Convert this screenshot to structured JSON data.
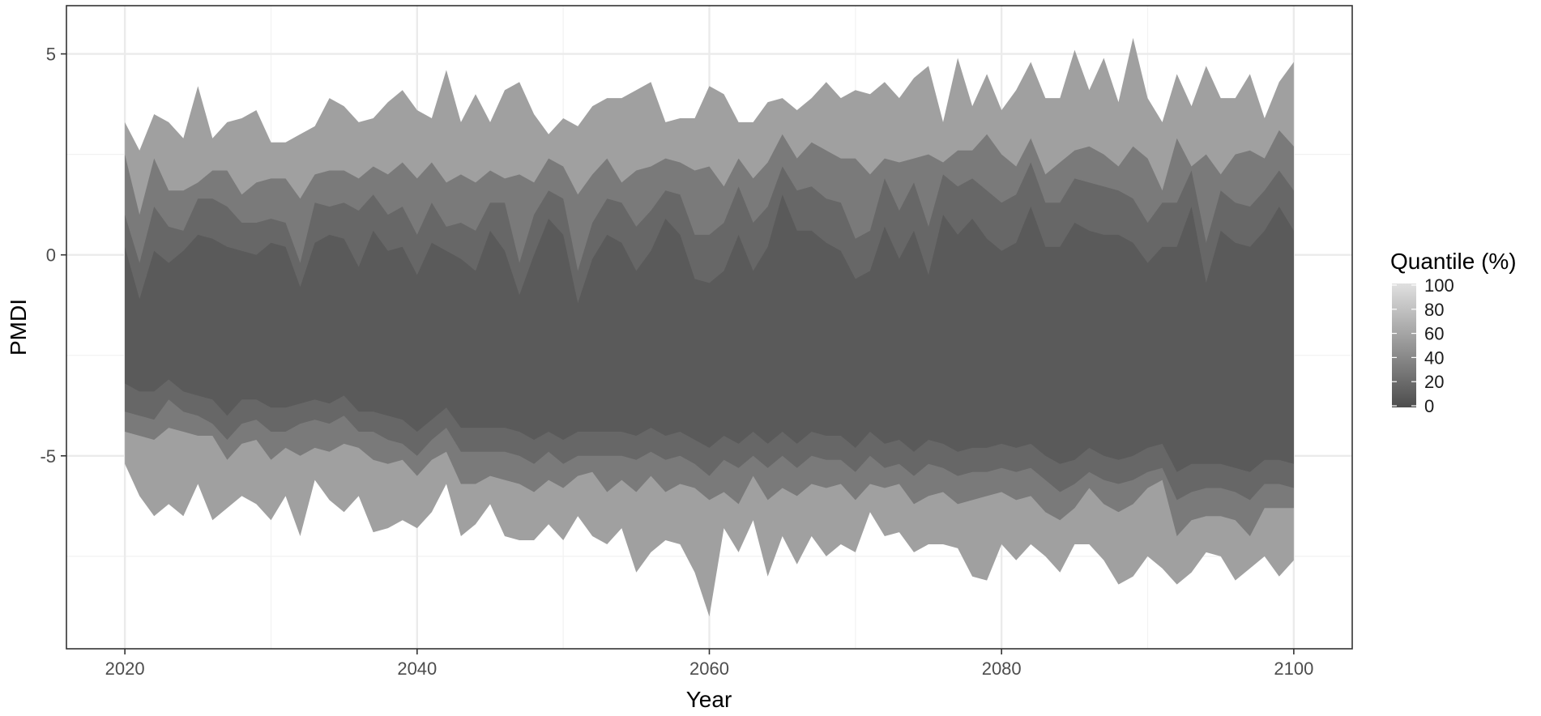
{
  "chart_data": {
    "type": "area",
    "xlabel": "Year",
    "ylabel": "PMDI",
    "xlim": [
      2016,
      2104
    ],
    "ylim": [
      -9.8,
      6.2
    ],
    "x_ticks": [
      2020,
      2040,
      2060,
      2080,
      2100
    ],
    "x_tick_labels": [
      "2020",
      "2040",
      "2060",
      "2080",
      "2100"
    ],
    "y_ticks": [
      5,
      0,
      -5
    ],
    "y_tick_labels": [
      "5",
      "0",
      "-5"
    ],
    "grid": true,
    "legend": {
      "title": "Quantile (%)",
      "placement": "right",
      "labels": [
        "100",
        "80",
        "60",
        "40",
        "20",
        "0"
      ],
      "values": [
        100,
        80,
        60,
        40,
        20,
        0
      ],
      "color_low": "#4d4d4d",
      "color_high": "#e0e0e0"
    },
    "band_colors": [
      "#a0a0a0",
      "#7a7a7a",
      "#676767",
      "#5a5a5a"
    ],
    "years": [
      2020,
      2021,
      2022,
      2023,
      2024,
      2025,
      2026,
      2027,
      2028,
      2029,
      2030,
      2031,
      2032,
      2033,
      2034,
      2035,
      2036,
      2037,
      2038,
      2039,
      2040,
      2041,
      2042,
      2043,
      2044,
      2045,
      2046,
      2047,
      2048,
      2049,
      2050,
      2051,
      2052,
      2053,
      2054,
      2055,
      2056,
      2057,
      2058,
      2059,
      2060,
      2061,
      2062,
      2063,
      2064,
      2065,
      2066,
      2067,
      2068,
      2069,
      2070,
      2071,
      2072,
      2073,
      2074,
      2075,
      2076,
      2077,
      2078,
      2079,
      2080,
      2081,
      2082,
      2083,
      2084,
      2085,
      2086,
      2087,
      2088,
      2089,
      2090,
      2091,
      2092,
      2093,
      2094,
      2095,
      2096,
      2097,
      2098,
      2099,
      2100
    ],
    "series": [
      {
        "band": "outer",
        "upper": [
          3.3,
          2.6,
          3.5,
          3.3,
          2.9,
          4.2,
          2.9,
          3.3,
          3.4,
          3.6,
          2.8,
          2.8,
          3.0,
          3.2,
          3.9,
          3.7,
          3.3,
          3.4,
          3.8,
          4.1,
          3.6,
          3.4,
          4.6,
          3.3,
          4.0,
          3.3,
          4.1,
          4.3,
          3.5,
          3.0,
          3.4,
          3.2,
          3.7,
          3.9,
          3.9,
          4.1,
          4.3,
          3.3,
          3.4,
          3.4,
          4.2,
          4.0,
          3.3,
          3.3,
          3.8,
          3.9,
          3.6,
          3.9,
          4.3,
          3.9,
          4.1,
          4.0,
          4.3,
          3.9,
          4.4,
          4.7,
          3.3,
          4.9,
          3.7,
          4.5,
          3.6,
          4.1,
          4.8,
          3.9,
          3.9,
          5.1,
          4.1,
          4.9,
          3.8,
          5.4,
          3.9,
          3.3,
          4.5,
          3.7,
          4.7,
          3.9,
          3.9,
          4.5,
          3.4,
          4.3,
          4.8
        ],
        "lower": [
          -5.2,
          -6.0,
          -6.5,
          -6.2,
          -6.5,
          -5.7,
          -6.6,
          -6.3,
          -6.0,
          -6.2,
          -6.6,
          -6.0,
          -7.0,
          -5.6,
          -6.1,
          -6.4,
          -6.0,
          -6.9,
          -6.8,
          -6.6,
          -6.8,
          -6.4,
          -5.7,
          -7.0,
          -6.7,
          -6.2,
          -7.0,
          -7.1,
          -7.1,
          -6.7,
          -7.1,
          -6.5,
          -7.0,
          -7.2,
          -6.8,
          -7.9,
          -7.4,
          -7.1,
          -7.2,
          -7.9,
          -9.0,
          -6.8,
          -7.4,
          -6.6,
          -8.0,
          -7.0,
          -7.7,
          -7.0,
          -7.5,
          -7.2,
          -7.4,
          -6.4,
          -7.0,
          -6.9,
          -7.4,
          -7.2,
          -7.2,
          -7.3,
          -8.0,
          -8.1,
          -7.2,
          -7.6,
          -7.2,
          -7.5,
          -7.9,
          -7.2,
          -7.2,
          -7.6,
          -8.2,
          -8.0,
          -7.5,
          -7.8,
          -8.2,
          -7.9,
          -7.4,
          -7.5,
          -8.1,
          -7.8,
          -7.5,
          -8.0,
          -7.6
        ]
      },
      {
        "band": "mid",
        "upper": [
          2.5,
          1.0,
          2.4,
          1.6,
          1.6,
          1.8,
          2.1,
          2.1,
          1.5,
          1.8,
          1.9,
          1.9,
          1.4,
          2.0,
          2.1,
          2.1,
          1.9,
          2.2,
          2.0,
          2.3,
          1.9,
          2.3,
          1.8,
          2.0,
          1.8,
          2.1,
          1.9,
          2.0,
          1.8,
          2.4,
          2.2,
          1.5,
          2.0,
          2.4,
          1.8,
          2.1,
          2.2,
          2.4,
          2.3,
          2.1,
          2.2,
          1.7,
          2.4,
          1.9,
          2.3,
          3.0,
          2.4,
          2.8,
          2.6,
          2.4,
          2.4,
          2.0,
          2.4,
          2.3,
          2.4,
          2.5,
          2.3,
          2.6,
          2.6,
          3.0,
          2.5,
          2.2,
          2.9,
          2.0,
          2.3,
          2.6,
          2.7,
          2.5,
          2.2,
          2.7,
          2.4,
          1.6,
          2.9,
          2.2,
          2.5,
          2.0,
          2.5,
          2.6,
          2.4,
          3.1,
          2.7
        ],
        "lower": [
          -4.4,
          -4.5,
          -4.6,
          -4.3,
          -4.4,
          -4.5,
          -4.5,
          -5.1,
          -4.7,
          -4.6,
          -5.1,
          -4.8,
          -5.0,
          -4.8,
          -4.9,
          -4.7,
          -4.8,
          -5.1,
          -5.2,
          -5.1,
          -5.5,
          -5.1,
          -4.9,
          -5.7,
          -5.7,
          -5.5,
          -5.6,
          -5.7,
          -5.9,
          -5.6,
          -5.8,
          -5.5,
          -5.4,
          -5.9,
          -5.6,
          -5.9,
          -5.5,
          -5.9,
          -5.7,
          -5.8,
          -6.1,
          -5.9,
          -6.2,
          -5.5,
          -6.1,
          -5.8,
          -6.0,
          -5.7,
          -5.8,
          -5.7,
          -6.1,
          -5.7,
          -5.8,
          -5.7,
          -6.2,
          -6.0,
          -5.9,
          -6.2,
          -6.1,
          -6.0,
          -5.9,
          -6.1,
          -6.0,
          -6.4,
          -6.6,
          -6.3,
          -5.8,
          -6.2,
          -6.4,
          -6.2,
          -5.8,
          -5.6,
          -7.0,
          -6.6,
          -6.5,
          -6.5,
          -6.6,
          -7.0,
          -6.3,
          -6.3,
          -6.3
        ]
      },
      {
        "band": "inner",
        "upper": [
          1.0,
          -0.2,
          1.2,
          0.7,
          0.6,
          1.4,
          1.4,
          1.2,
          0.8,
          0.8,
          0.9,
          0.8,
          -0.2,
          1.3,
          1.2,
          1.3,
          1.1,
          1.5,
          1.0,
          1.2,
          0.5,
          1.3,
          0.7,
          0.8,
          0.6,
          1.3,
          1.3,
          -0.2,
          1.0,
          1.6,
          1.4,
          -0.4,
          0.8,
          1.4,
          1.3,
          0.7,
          1.1,
          1.6,
          1.5,
          0.5,
          0.5,
          0.8,
          1.7,
          0.8,
          1.2,
          2.2,
          1.6,
          1.7,
          1.4,
          1.3,
          0.4,
          0.6,
          1.9,
          1.1,
          1.8,
          0.7,
          2.0,
          1.7,
          1.9,
          1.6,
          1.3,
          1.5,
          2.3,
          1.3,
          1.3,
          1.9,
          1.8,
          1.7,
          1.6,
          1.4,
          0.8,
          1.3,
          1.3,
          2.1,
          0.3,
          1.6,
          1.3,
          1.2,
          1.6,
          2.1,
          1.6
        ],
        "lower": [
          -3.9,
          -4.0,
          -4.1,
          -3.6,
          -3.9,
          -4.0,
          -4.2,
          -4.6,
          -4.2,
          -4.1,
          -4.4,
          -4.4,
          -4.2,
          -4.1,
          -4.2,
          -4.0,
          -4.4,
          -4.4,
          -4.6,
          -4.7,
          -5.0,
          -4.6,
          -4.3,
          -4.9,
          -4.9,
          -4.9,
          -4.9,
          -5.0,
          -5.2,
          -4.9,
          -5.2,
          -5.0,
          -5.0,
          -5.0,
          -5.0,
          -5.1,
          -4.9,
          -5.1,
          -5.0,
          -5.2,
          -5.5,
          -5.1,
          -5.3,
          -5.0,
          -5.3,
          -5.0,
          -5.3,
          -5.0,
          -5.1,
          -5.1,
          -5.4,
          -5.0,
          -5.3,
          -5.2,
          -5.5,
          -5.2,
          -5.3,
          -5.5,
          -5.4,
          -5.4,
          -5.3,
          -5.4,
          -5.3,
          -5.6,
          -5.9,
          -5.7,
          -5.4,
          -5.6,
          -5.7,
          -5.6,
          -5.4,
          -5.3,
          -6.1,
          -5.9,
          -5.8,
          -5.8,
          -5.9,
          -6.1,
          -5.7,
          -5.7,
          -5.8
        ]
      },
      {
        "band": "core",
        "upper": [
          0.2,
          -1.1,
          0.1,
          -0.2,
          0.1,
          0.5,
          0.4,
          0.2,
          0.1,
          0.0,
          0.3,
          0.2,
          -0.8,
          0.3,
          0.5,
          0.4,
          -0.3,
          0.6,
          0.1,
          0.2,
          -0.5,
          0.3,
          0.1,
          -0.1,
          -0.4,
          0.6,
          0.1,
          -1.0,
          0.0,
          0.9,
          0.5,
          -1.2,
          -0.1,
          0.5,
          0.3,
          -0.4,
          0.1,
          0.9,
          0.5,
          -0.6,
          -0.7,
          -0.4,
          0.5,
          -0.4,
          0.2,
          1.5,
          0.6,
          0.6,
          0.3,
          0.1,
          -0.6,
          -0.4,
          0.7,
          -0.1,
          0.6,
          -0.5,
          1.0,
          0.5,
          0.9,
          0.4,
          0.1,
          0.3,
          1.2,
          0.2,
          0.2,
          0.8,
          0.6,
          0.5,
          0.5,
          0.3,
          -0.2,
          0.2,
          0.2,
          1.2,
          -0.7,
          0.6,
          0.3,
          0.2,
          0.6,
          1.2,
          0.6
        ],
        "lower": [
          -3.2,
          -3.4,
          -3.4,
          -3.1,
          -3.4,
          -3.5,
          -3.6,
          -4.0,
          -3.6,
          -3.6,
          -3.8,
          -3.8,
          -3.7,
          -3.6,
          -3.7,
          -3.5,
          -3.9,
          -3.9,
          -4.0,
          -4.1,
          -4.4,
          -4.1,
          -3.8,
          -4.3,
          -4.3,
          -4.3,
          -4.3,
          -4.4,
          -4.6,
          -4.4,
          -4.6,
          -4.4,
          -4.4,
          -4.4,
          -4.4,
          -4.5,
          -4.3,
          -4.5,
          -4.4,
          -4.6,
          -4.8,
          -4.5,
          -4.7,
          -4.4,
          -4.7,
          -4.4,
          -4.7,
          -4.4,
          -4.5,
          -4.5,
          -4.8,
          -4.4,
          -4.7,
          -4.6,
          -4.9,
          -4.6,
          -4.7,
          -4.9,
          -4.8,
          -4.8,
          -4.7,
          -4.8,
          -4.7,
          -5.0,
          -5.2,
          -5.1,
          -4.8,
          -5.0,
          -5.1,
          -5.0,
          -4.8,
          -4.7,
          -5.4,
          -5.2,
          -5.2,
          -5.2,
          -5.3,
          -5.4,
          -5.1,
          -5.1,
          -5.2
        ]
      }
    ]
  }
}
